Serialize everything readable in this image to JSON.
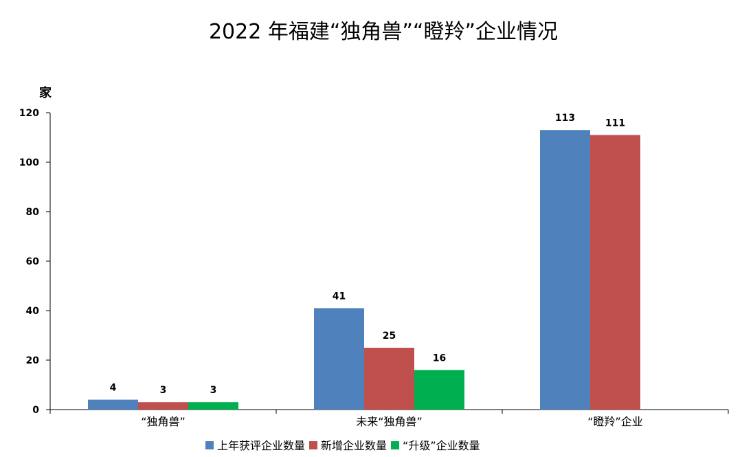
{
  "chart_data": {
    "type": "bar",
    "title": "2022 年福建“独角兽”“瞪羚”企业情况",
    "ylabel": "家",
    "xlabel": "",
    "ylim": [
      0,
      120
    ],
    "yticks": [
      0,
      20,
      40,
      60,
      80,
      100,
      120
    ],
    "categories": [
      "“独角兽”",
      "未来“独角兽”",
      "“瞪羚”企业"
    ],
    "series": [
      {
        "name": "上年获评企业数量",
        "color": "#4f81bd",
        "values": [
          4,
          41,
          113
        ]
      },
      {
        "name": "新增企业数量",
        "color": "#c0504d",
        "values": [
          3,
          25,
          111
        ]
      },
      {
        "name": "“升级”企业数量",
        "color": "#00b050",
        "values": [
          3,
          16,
          null
        ]
      }
    ],
    "grid": false,
    "legend_position": "bottom"
  }
}
